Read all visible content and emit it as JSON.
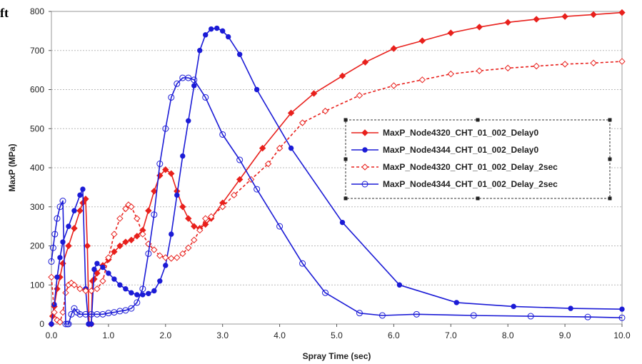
{
  "corner_text": "ft",
  "chart_data": {
    "type": "line",
    "title": "",
    "xlabel": "Spray Time (sec)",
    "ylabel": "MaxP (MPa)",
    "xlim": [
      0,
      10
    ],
    "ylim": [
      0,
      800
    ],
    "xticks": [
      0,
      1,
      2,
      3,
      4,
      5,
      6,
      7,
      8,
      9,
      10
    ],
    "yticks": [
      0,
      100,
      200,
      300,
      400,
      500,
      600,
      700,
      800
    ],
    "xtick_labels": [
      "0.0",
      "1.0",
      "2.0",
      "3.0",
      "4.0",
      "5.0",
      "6.0",
      "7.0",
      "8.0",
      "9.0",
      "10.0"
    ],
    "ytick_labels": [
      "0",
      "100",
      "200",
      "300",
      "400",
      "500",
      "600",
      "700",
      "800"
    ],
    "grid": "horizontal dashed",
    "legend_position": "right-middle",
    "series": [
      {
        "name": "MaxP_Node4320_CHT_01_002_Delay0",
        "color": "#e8201c",
        "line_style": "solid",
        "marker": "filled-diamond",
        "x": [
          0,
          0.02,
          0.05,
          0.1,
          0.15,
          0.2,
          0.3,
          0.4,
          0.5,
          0.55,
          0.6,
          0.63,
          0.66,
          0.7,
          0.72,
          0.75,
          0.8,
          0.9,
          1.0,
          1.1,
          1.2,
          1.3,
          1.4,
          1.5,
          1.6,
          1.7,
          1.8,
          1.9,
          2.0,
          2.1,
          2.2,
          2.3,
          2.4,
          2.5,
          2.6,
          2.7,
          2.8,
          3.0,
          3.3,
          3.7,
          4.2,
          4.6,
          5.1,
          5.5,
          6.0,
          6.5,
          7.0,
          7.5,
          8.0,
          8.5,
          9.0,
          9.5,
          10.0
        ],
        "y": [
          0,
          20,
          45,
          90,
          120,
          155,
          200,
          245,
          290,
          310,
          320,
          200,
          0,
          0,
          110,
          115,
          130,
          150,
          165,
          185,
          200,
          210,
          215,
          225,
          240,
          290,
          340,
          380,
          395,
          385,
          340,
          300,
          270,
          250,
          245,
          255,
          270,
          310,
          370,
          450,
          540,
          590,
          635,
          670,
          705,
          725,
          745,
          760,
          772,
          780,
          787,
          792,
          797
        ]
      },
      {
        "name": "MaxP_Node4344_CHT_01_002_Delay0",
        "color": "#1b1bd6",
        "line_style": "solid",
        "marker": "filled-circle",
        "x": [
          0,
          0.05,
          0.1,
          0.15,
          0.2,
          0.3,
          0.4,
          0.5,
          0.55,
          0.6,
          0.65,
          0.7,
          0.75,
          0.8,
          0.9,
          1.0,
          1.1,
          1.2,
          1.3,
          1.4,
          1.5,
          1.6,
          1.7,
          1.8,
          1.9,
          2.0,
          2.1,
          2.2,
          2.3,
          2.4,
          2.5,
          2.6,
          2.7,
          2.8,
          2.9,
          3.0,
          3.1,
          3.3,
          3.6,
          4.2,
          5.1,
          6.1,
          7.1,
          8.1,
          9.1,
          10.0
        ],
        "y": [
          0,
          50,
          120,
          170,
          210,
          250,
          290,
          330,
          345,
          90,
          0,
          0,
          140,
          155,
          145,
          130,
          115,
          100,
          90,
          80,
          75,
          75,
          78,
          85,
          110,
          150,
          230,
          330,
          430,
          520,
          610,
          700,
          740,
          755,
          757,
          750,
          735,
          690,
          600,
          450,
          260,
          100,
          55,
          45,
          40,
          38
        ]
      },
      {
        "name": "MaxP_Node4320_CHT_01_002_Delay_2sec",
        "color": "#e8201c",
        "line_style": "dashed",
        "marker": "open-diamond",
        "x": [
          0,
          0.05,
          0.1,
          0.15,
          0.2,
          0.25,
          0.3,
          0.35,
          0.4,
          0.5,
          0.6,
          0.7,
          0.8,
          0.9,
          1.0,
          1.1,
          1.2,
          1.3,
          1.35,
          1.4,
          1.5,
          1.6,
          1.7,
          1.8,
          1.9,
          2.0,
          2.1,
          2.2,
          2.3,
          2.4,
          2.5,
          2.6,
          2.7,
          2.8,
          3.0,
          3.2,
          3.5,
          3.8,
          4.0,
          4.4,
          4.8,
          5.4,
          6.0,
          6.5,
          7.0,
          7.5,
          8.0,
          8.5,
          9.0,
          9.5,
          10.0
        ],
        "y": [
          120,
          30,
          10,
          5,
          30,
          80,
          100,
          105,
          100,
          90,
          85,
          85,
          90,
          110,
          170,
          230,
          270,
          295,
          305,
          300,
          270,
          230,
          205,
          190,
          175,
          170,
          168,
          170,
          180,
          195,
          215,
          240,
          270,
          275,
          300,
          330,
          370,
          410,
          450,
          515,
          545,
          585,
          610,
          625,
          640,
          648,
          655,
          660,
          665,
          668,
          672
        ]
      },
      {
        "name": "MaxP_Node4344_CHT_01_002_Delay_2sec",
        "color": "#1b1bd6",
        "line_style": "solid",
        "marker": "open-circle",
        "x": [
          0,
          0.03,
          0.06,
          0.1,
          0.15,
          0.2,
          0.25,
          0.28,
          0.3,
          0.35,
          0.4,
          0.45,
          0.5,
          0.6,
          0.7,
          0.8,
          0.9,
          1.0,
          1.1,
          1.2,
          1.3,
          1.4,
          1.5,
          1.6,
          1.7,
          1.8,
          1.9,
          2.0,
          2.1,
          2.2,
          2.3,
          2.4,
          2.5,
          2.7,
          3.0,
          3.3,
          3.6,
          4.0,
          4.4,
          4.8,
          5.4,
          5.8,
          6.4,
          7.4,
          8.4,
          9.4,
          10.0
        ],
        "y": [
          160,
          195,
          230,
          270,
          300,
          315,
          0,
          0,
          0,
          25,
          40,
          30,
          25,
          25,
          25,
          25,
          25,
          28,
          30,
          33,
          35,
          40,
          55,
          90,
          180,
          280,
          410,
          500,
          580,
          615,
          630,
          630,
          625,
          580,
          485,
          420,
          345,
          250,
          155,
          80,
          28,
          22,
          25,
          22,
          20,
          18,
          16
        ]
      }
    ]
  }
}
